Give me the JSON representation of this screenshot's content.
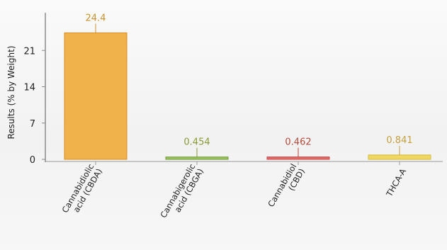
{
  "chart_data": {
    "type": "bar",
    "title": "",
    "xlabel": "",
    "ylabel": "Results (% by Weight)",
    "ylim": [
      0,
      28
    ],
    "yticks": [
      "0",
      "7",
      "14",
      "21"
    ],
    "categories": [
      [
        "Cannabidiolic",
        "acid (CBDA)"
      ],
      [
        "Cannabigerolic",
        "acid (CBGA)"
      ],
      [
        "Cannabidiol",
        "(CBD)"
      ],
      [
        "THCA-A"
      ]
    ],
    "values": [
      24.4,
      0.454,
      0.462,
      0.841
    ],
    "value_labels": [
      "24.4",
      "0.454",
      "0.462",
      "0.841"
    ],
    "bar_colors": [
      "#f0b24a",
      "#9bc45a",
      "#e66a6a",
      "#f0d860"
    ],
    "bar_edge_colors": [
      "#d88f22",
      "#6f9a38",
      "#c84848",
      "#d4b83a"
    ],
    "label_colors": [
      "#c8922e",
      "#8a9a38",
      "#b24a3a",
      "#c4a040"
    ],
    "grid": false
  }
}
